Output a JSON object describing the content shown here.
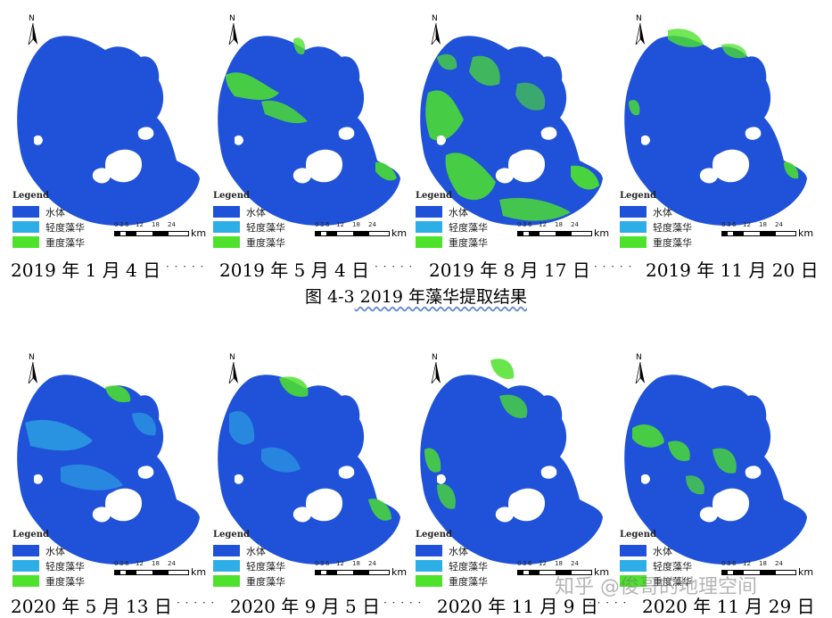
{
  "colors": {
    "water": "#1f52d8",
    "light_bloom": "#2eaee6",
    "heavy_bloom": "#4ee22c"
  },
  "legend": {
    "title": "Legend",
    "items": [
      {
        "label": "水体",
        "color": "#1f52d8"
      },
      {
        "label": "轻度藻华",
        "color": "#2eaee6"
      },
      {
        "label": "重度藻华",
        "color": "#4ee22c"
      }
    ]
  },
  "scale": {
    "ticks": [
      "0",
      "3",
      "6",
      "12",
      "18",
      "24"
    ],
    "unit": "km"
  },
  "north_label": "N",
  "caption": {
    "prefix": "图 4-3",
    "text": " 2019 年藻华提取结果"
  },
  "separator": "· · · · ·",
  "panels": [
    {
      "date": "2019 年 1 月 4 日",
      "bloom": "none"
    },
    {
      "date": "2019 年 5 月 4 日",
      "bloom": "west"
    },
    {
      "date": "2019 年 8 月 17 日",
      "bloom": "heavy"
    },
    {
      "date": "2019 年 11 月 20 日",
      "bloom": "north"
    },
    {
      "date": "2020 年 5 月 13 日",
      "bloom": "light"
    },
    {
      "date": "2020 年 9 月 5 日",
      "bloom": "light-ne"
    },
    {
      "date": "2020 年 11 月 9 日",
      "bloom": "north-west"
    },
    {
      "date": "2020 年 11 月 29 日",
      "bloom": "patches"
    }
  ],
  "watermark": "知乎 @俊哥的地理空间"
}
